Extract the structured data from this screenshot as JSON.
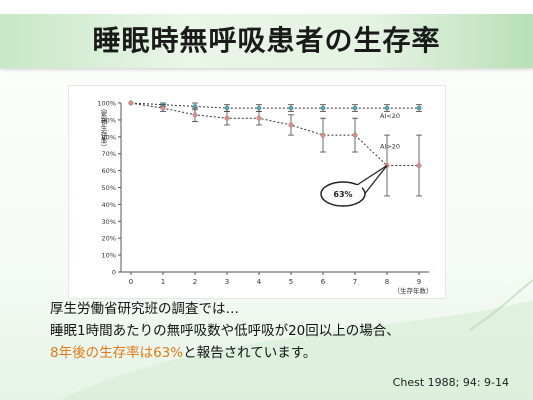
{
  "slide": {
    "title": "睡眠時無呼吸患者の生存率",
    "lines": [
      "厚生労働省研究班の調査では…",
      "睡眠1時間あたりの無呼吸数や低呼吸が20回以上の場合、"
    ],
    "line3_highlight": "8年後の生存率は63%",
    "line3_rest": "と報告されています。",
    "citation": "Chest 1988; 94: 9-14",
    "highlight_color": "#e07b1a"
  },
  "chart_data": {
    "type": "line",
    "x": [
      0,
      1,
      2,
      3,
      4,
      5,
      6,
      7,
      8,
      9
    ],
    "ylim": [
      0,
      100
    ],
    "yticks": [
      "0",
      "10%",
      "20%",
      "30%",
      "40%",
      "50%",
      "60%",
      "70%",
      "80%",
      "90%",
      "100%"
    ],
    "xticks": [
      "0",
      "1",
      "2",
      "3",
      "4",
      "5",
      "6",
      "7",
      "8",
      "9"
    ],
    "ylabel": "（累積生存率）",
    "xlabel": "（生存年数）",
    "series": [
      {
        "name": "AI<20",
        "color": "#4aa8c8",
        "values": [
          100,
          99,
          98,
          97,
          97,
          97,
          97,
          97,
          97,
          97
        ],
        "err": [
          0,
          1,
          2,
          2,
          2,
          2,
          2,
          2,
          2,
          2
        ]
      },
      {
        "name": "AI>20",
        "color": "#e88a8a",
        "values": [
          100,
          97,
          93,
          91,
          91,
          87,
          81,
          81,
          63,
          63
        ],
        "err": [
          0,
          2,
          4,
          4,
          4,
          6,
          10,
          10,
          18,
          18
        ]
      }
    ],
    "callout": "63%"
  }
}
